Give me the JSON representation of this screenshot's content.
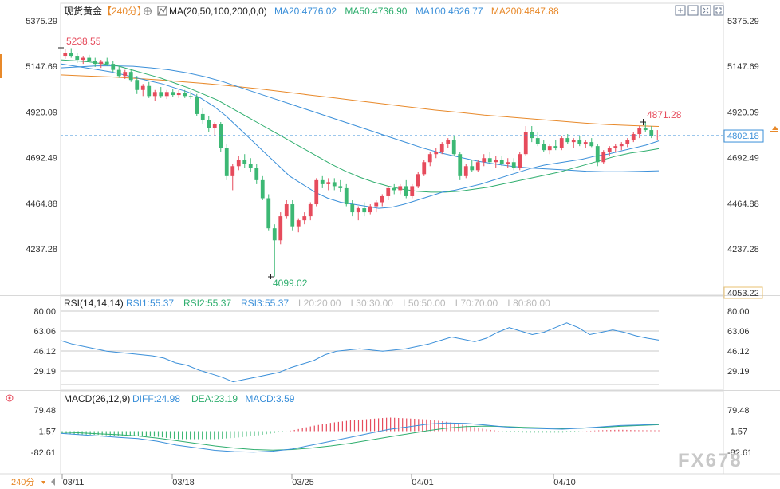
{
  "header": {
    "symbol": "现货黄金",
    "period_badge": "【240分】",
    "ma_label": "MA(20,50,100,200,0,0)",
    "ma_values": [
      {
        "text": "MA20:4776.02",
        "color": "#3a8fd9"
      },
      {
        "text": "MA50:4736.90",
        "color": "#2fae6e"
      },
      {
        "text": "MA100:4626.77",
        "color": "#3a8fd9"
      },
      {
        "text": "MA200:4847.88",
        "color": "#e8892a"
      }
    ],
    "tools": [
      "zoom-in-icon",
      "zoom-out-icon",
      "compress-icon",
      "expand-icon"
    ]
  },
  "price_axis": {
    "ticks": [
      "5375.29",
      "5147.69",
      "4920.09",
      "4692.49",
      "4464.88",
      "4237.28"
    ],
    "tick_values": [
      5375.29,
      5147.69,
      4920.09,
      4692.49,
      4464.88,
      4237.28
    ],
    "bottom_label": "4053.22",
    "current_price": "4802.18"
  },
  "annotations": {
    "high_left": "5238.55",
    "low": "4099.02",
    "high_right": "4871.28"
  },
  "rsi": {
    "label": "RSI(14,14,14)",
    "values": [
      {
        "text": "RSI1:55.37",
        "color": "#3a8fd9"
      },
      {
        "text": "RSI2:55.37",
        "color": "#2fae6e"
      },
      {
        "text": "RSI3:55.37",
        "color": "#3a8fd9"
      },
      {
        "text": "L20:20.00",
        "color": "#b9b9b9"
      },
      {
        "text": "L30:30.00",
        "color": "#b9b9b9"
      },
      {
        "text": "L50:50.00",
        "color": "#b9b9b9"
      },
      {
        "text": "L70:70.00",
        "color": "#b9b9b9"
      },
      {
        "text": "L80:80.00",
        "color": "#b9b9b9"
      }
    ],
    "ticks": [
      "80.00",
      "63.06",
      "46.12",
      "29.19"
    ],
    "tick_values": [
      80.0,
      63.06,
      46.12,
      29.19
    ]
  },
  "macd": {
    "label": "MACD(26,12,9)",
    "values": [
      {
        "text": "DIFF:24.98",
        "color": "#3a8fd9"
      },
      {
        "text": "DEA:23.19",
        "color": "#2fae6e"
      },
      {
        "text": "MACD:3.59",
        "color": "#3a8fd9"
      }
    ],
    "ticks": [
      "79.48",
      "-1.57",
      "-82.61"
    ],
    "tick_values": [
      79.48,
      -1.57,
      -82.61
    ]
  },
  "bottom_bar": {
    "period": "240分",
    "dates": [
      "03/11",
      "03/18",
      "03/25",
      "04/01",
      "04/10"
    ]
  },
  "watermark": "FX678",
  "colors": {
    "up": "#e64b5c",
    "down": "#3cb874",
    "ma20": "#3a8fd9",
    "ma50": "#2fae6e",
    "ma100": "#3a8fd9",
    "ma200": "#e8892a",
    "current": "#3a8fd9",
    "axis_text": "#333333"
  },
  "chart_data": {
    "type": "candlestick",
    "x_labels": [
      "03/11",
      "03/18",
      "03/25",
      "04/01",
      "04/10"
    ],
    "price_ticks": [
      5375.29,
      5147.69,
      4920.09,
      4692.49,
      4464.88,
      4237.28
    ],
    "current_price": 4802.18,
    "marked_high": 5238.55,
    "marked_low": 4099.02,
    "marked_recent_high": 4871.28,
    "ohlc": [
      [
        5200,
        5235,
        5185,
        5215
      ],
      [
        5215,
        5238,
        5190,
        5200
      ],
      [
        5200,
        5215,
        5165,
        5180
      ],
      [
        5180,
        5200,
        5160,
        5190
      ],
      [
        5190,
        5205,
        5170,
        5175
      ],
      [
        5175,
        5190,
        5145,
        5160
      ],
      [
        5160,
        5180,
        5140,
        5170
      ],
      [
        5170,
        5190,
        5150,
        5160
      ],
      [
        5160,
        5175,
        5120,
        5130
      ],
      [
        5130,
        5150,
        5090,
        5100
      ],
      [
        5100,
        5130,
        5085,
        5120
      ],
      [
        5120,
        5135,
        5070,
        5080
      ],
      [
        5080,
        5100,
        5010,
        5030
      ],
      [
        5030,
        5060,
        5000,
        5050
      ],
      [
        5050,
        5070,
        4990,
        5000
      ],
      [
        5000,
        5030,
        4975,
        5020
      ],
      [
        5020,
        5045,
        4990,
        5000
      ],
      [
        5000,
        5030,
        4985,
        5020
      ],
      [
        5020,
        5035,
        4995,
        5005
      ],
      [
        5005,
        5030,
        4990,
        5015
      ],
      [
        5015,
        5030,
        4990,
        5000
      ],
      [
        5000,
        5025,
        4985,
        4995
      ],
      [
        4995,
        5010,
        4900,
        4910
      ],
      [
        4910,
        4940,
        4860,
        4880
      ],
      [
        4880,
        4900,
        4820,
        4840
      ],
      [
        4840,
        4870,
        4800,
        4860
      ],
      [
        4860,
        4870,
        4720,
        4740
      ],
      [
        4740,
        4760,
        4580,
        4600
      ],
      [
        4600,
        4660,
        4530,
        4650
      ],
      [
        4650,
        4700,
        4630,
        4680
      ],
      [
        4680,
        4710,
        4640,
        4660
      ],
      [
        4660,
        4690,
        4620,
        4640
      ],
      [
        4640,
        4660,
        4560,
        4580
      ],
      [
        4580,
        4600,
        4480,
        4490
      ],
      [
        4490,
        4510,
        4330,
        4340
      ],
      [
        4340,
        4360,
        4099,
        4280
      ],
      [
        4280,
        4420,
        4260,
        4400
      ],
      [
        4400,
        4480,
        4390,
        4460
      ],
      [
        4460,
        4480,
        4330,
        4350
      ],
      [
        4350,
        4390,
        4320,
        4380
      ],
      [
        4380,
        4420,
        4360,
        4400
      ],
      [
        4400,
        4470,
        4380,
        4460
      ],
      [
        4460,
        4590,
        4450,
        4580
      ],
      [
        4580,
        4600,
        4540,
        4560
      ],
      [
        4560,
        4590,
        4530,
        4570
      ],
      [
        4570,
        4590,
        4530,
        4550
      ],
      [
        4550,
        4580,
        4520,
        4540
      ],
      [
        4540,
        4560,
        4450,
        4460
      ],
      [
        4460,
        4480,
        4400,
        4420
      ],
      [
        4420,
        4450,
        4380,
        4440
      ],
      [
        4440,
        4470,
        4400,
        4420
      ],
      [
        4420,
        4460,
        4410,
        4450
      ],
      [
        4450,
        4480,
        4420,
        4470
      ],
      [
        4470,
        4510,
        4450,
        4500
      ],
      [
        4500,
        4550,
        4480,
        4540
      ],
      [
        4540,
        4560,
        4510,
        4530
      ],
      [
        4530,
        4560,
        4510,
        4550
      ],
      [
        4550,
        4580,
        4490,
        4500
      ],
      [
        4500,
        4560,
        4490,
        4550
      ],
      [
        4550,
        4620,
        4540,
        4610
      ],
      [
        4610,
        4680,
        4600,
        4670
      ],
      [
        4670,
        4720,
        4650,
        4710
      ],
      [
        4710,
        4740,
        4690,
        4720
      ],
      [
        4720,
        4770,
        4710,
        4760
      ],
      [
        4760,
        4790,
        4740,
        4780
      ],
      [
        4780,
        4800,
        4700,
        4710
      ],
      [
        4710,
        4720,
        4580,
        4600
      ],
      [
        4600,
        4660,
        4590,
        4650
      ],
      [
        4650,
        4680,
        4620,
        4630
      ],
      [
        4630,
        4680,
        4620,
        4670
      ],
      [
        4670,
        4710,
        4650,
        4690
      ],
      [
        4690,
        4720,
        4660,
        4670
      ],
      [
        4670,
        4700,
        4640,
        4680
      ],
      [
        4680,
        4700,
        4650,
        4660
      ],
      [
        4660,
        4690,
        4640,
        4670
      ],
      [
        4670,
        4690,
        4630,
        4640
      ],
      [
        4640,
        4720,
        4630,
        4710
      ],
      [
        4710,
        4850,
        4700,
        4820
      ],
      [
        4820,
        4850,
        4770,
        4790
      ],
      [
        4790,
        4820,
        4750,
        4760
      ],
      [
        4760,
        4780,
        4720,
        4730
      ],
      [
        4730,
        4760,
        4710,
        4750
      ],
      [
        4750,
        4780,
        4730,
        4740
      ],
      [
        4740,
        4800,
        4730,
        4790
      ],
      [
        4790,
        4810,
        4760,
        4770
      ],
      [
        4770,
        4790,
        4740,
        4780
      ],
      [
        4780,
        4800,
        4750,
        4760
      ],
      [
        4760,
        4780,
        4740,
        4770
      ],
      [
        4770,
        4790,
        4745,
        4750
      ],
      [
        4750,
        4760,
        4650,
        4670
      ],
      [
        4670,
        4730,
        4660,
        4720
      ],
      [
        4720,
        4750,
        4700,
        4740
      ],
      [
        4740,
        4760,
        4720,
        4750
      ],
      [
        4750,
        4770,
        4730,
        4760
      ],
      [
        4760,
        4790,
        4745,
        4780
      ],
      [
        4780,
        4820,
        4770,
        4810
      ],
      [
        4810,
        4850,
        4790,
        4840
      ],
      [
        4840,
        4871,
        4820,
        4830
      ],
      [
        4830,
        4850,
        4790,
        4800
      ],
      [
        4800,
        4830,
        4780,
        4802
      ]
    ],
    "ma20": [
      5160,
      5150,
      5140,
      5130,
      5120,
      5105,
      5090,
      5075,
      5060,
      5040,
      5020,
      4990,
      4950,
      4900,
      4840,
      4780,
      4720,
      4660,
      4600,
      4560,
      4520,
      4490,
      4470,
      4460,
      4450,
      4440,
      4445,
      4460,
      4480,
      4500,
      4520,
      4530,
      4545,
      4560,
      4580,
      4600,
      4620,
      4640,
      4655,
      4665,
      4675,
      4685,
      4700,
      4710,
      4725,
      4740,
      4755,
      4776
    ],
    "ma50": [
      5180,
      5175,
      5170,
      5160,
      5150,
      5130,
      5110,
      5090,
      5065,
      5040,
      5010,
      4980,
      4940,
      4900,
      4860,
      4820,
      4780,
      4740,
      4700,
      4660,
      4625,
      4595,
      4570,
      4550,
      4535,
      4525,
      4520,
      4520,
      4525,
      4535,
      4545,
      4560,
      4575,
      4590,
      4605,
      4620,
      4640,
      4660,
      4680,
      4700,
      4715,
      4725,
      4736.9
    ],
    "ma100": [
      5140,
      5145,
      5150,
      5150,
      5148,
      5140,
      5130,
      5115,
      5095,
      5070,
      5040,
      5010,
      4980,
      4950,
      4920,
      4890,
      4860,
      4830,
      4800,
      4770,
      4740,
      4715,
      4695,
      4675,
      4660,
      4648,
      4640,
      4635,
      4630,
      4625,
      4622,
      4622,
      4624,
      4626.77
    ],
    "ma200": [
      5105,
      5100,
      5095,
      5088,
      5080,
      5070,
      5060,
      5048,
      5035,
      5020,
      5005,
      4990,
      4975,
      4960,
      4945,
      4930,
      4918,
      4905,
      4895,
      4885,
      4875,
      4865,
      4857,
      4852,
      4847.88
    ],
    "rsi": [
      55,
      52,
      50,
      48,
      46,
      45,
      44,
      43,
      42,
      40,
      36,
      34,
      30,
      27,
      24,
      20,
      22,
      24,
      26,
      28,
      32,
      35,
      38,
      43,
      46,
      47,
      48,
      47,
      46,
      47,
      48,
      50,
      52,
      55,
      58,
      56,
      54,
      57,
      62,
      66,
      63,
      60,
      62,
      66,
      70,
      66,
      60,
      62,
      64,
      62,
      59,
      57,
      55.37
    ],
    "macd_diff": [
      -10,
      -15,
      -20,
      -25,
      -30,
      -40,
      -55,
      -65,
      -75,
      -80,
      -82,
      -78,
      -70,
      -55,
      -40,
      -25,
      -10,
      5,
      15,
      25,
      30,
      28,
      22,
      15,
      10,
      8,
      6,
      10,
      15,
      20,
      22,
      24.98
    ],
    "macd_dea": [
      -5,
      -8,
      -12,
      -15,
      -20,
      -28,
      -38,
      -48,
      -58,
      -66,
      -72,
      -74,
      -72,
      -66,
      -58,
      -48,
      -36,
      -24,
      -12,
      0,
      10,
      16,
      18,
      16,
      13,
      11,
      9,
      10,
      13,
      17,
      20,
      23.19
    ]
  }
}
